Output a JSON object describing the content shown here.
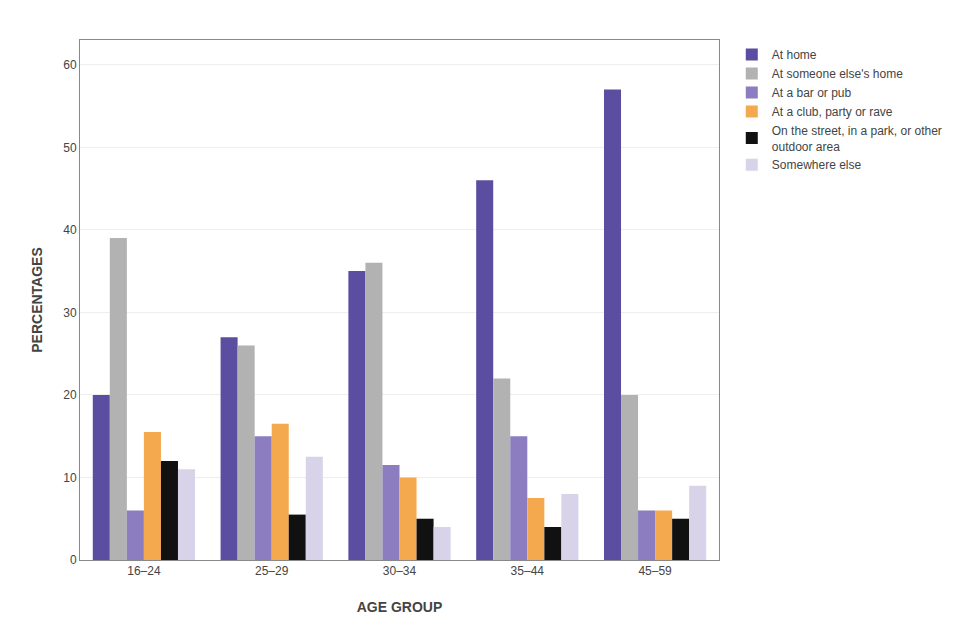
{
  "chart_data": {
    "type": "bar",
    "categories": [
      "16–24",
      "25–29",
      "30–34",
      "35–44",
      "45–59"
    ],
    "series": [
      {
        "name": "At home",
        "color": "#5b4ea0",
        "values": [
          20,
          27,
          35,
          46,
          57
        ]
      },
      {
        "name": "At someone else's home",
        "color": "#b2b2b2",
        "values": [
          39,
          26,
          36,
          22,
          20
        ]
      },
      {
        "name": "At a bar or pub",
        "color": "#8b7dbf",
        "values": [
          6,
          15,
          11.5,
          15,
          6
        ]
      },
      {
        "name": "At a club, party or rave",
        "color": "#f5a94e",
        "values": [
          15.5,
          16.5,
          10,
          7.5,
          6
        ]
      },
      {
        "name": "On the street, in a park, or other\noutdoor area",
        "color": "#111111",
        "values": [
          12,
          5.5,
          5,
          4,
          5
        ]
      },
      {
        "name": "Somewhere else",
        "color": "#d8d3e8",
        "values": [
          11,
          12.5,
          4,
          8,
          9
        ]
      }
    ],
    "xlabel": "AGE GROUP",
    "ylabel": "PERCENTAGES",
    "ylim": [
      0,
      63
    ],
    "yticks": [
      0,
      10,
      20,
      30,
      40,
      50,
      60
    ],
    "grid": true,
    "legend": "right"
  }
}
